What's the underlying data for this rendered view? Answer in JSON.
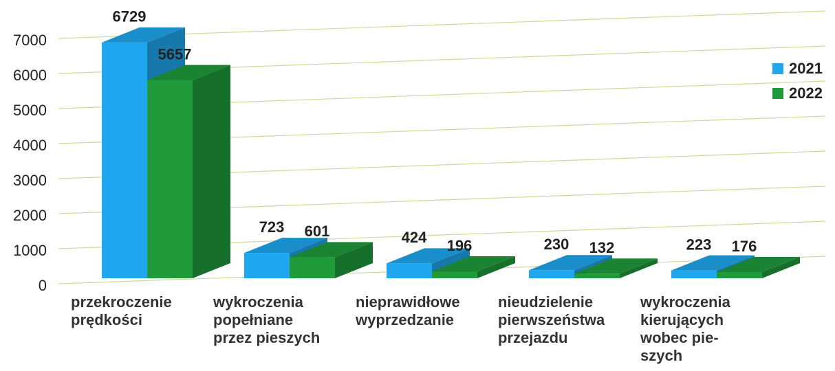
{
  "chart_data": {
    "type": "bar3d",
    "categories": [
      [
        "przekroczenie",
        "prędkości"
      ],
      [
        "wykroczenia",
        "popełniane",
        "przez pieszych"
      ],
      [
        "nieprawidłowe",
        "wyprzedzanie"
      ],
      [
        "nieudzielenie",
        "pierwszeństwa",
        "przejazdu"
      ],
      [
        "wykroczenia",
        "kierujących",
        "wobec pie-",
        "szych"
      ]
    ],
    "series": [
      {
        "name": "2021",
        "color": "#1ea7ee",
        "values": [
          6729,
          723,
          424,
          230,
          223
        ]
      },
      {
        "name": "2022",
        "color": "#1f9b3c",
        "values": [
          5657,
          601,
          196,
          132,
          176
        ]
      }
    ],
    "ylim": [
      0,
      7000
    ],
    "yticks": [
      0,
      1000,
      2000,
      3000,
      4000,
      5000,
      6000,
      7000
    ],
    "grid": true,
    "legend": "right"
  }
}
